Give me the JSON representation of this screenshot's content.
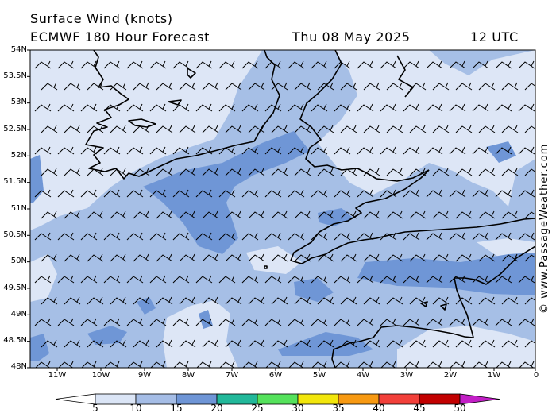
{
  "title": {
    "line1": "Surface Wind (knots)",
    "line2": "ECMWF 180 Hour Forecast",
    "date": "Thu 08 May 2025",
    "time": "12 UTC"
  },
  "watermark": "© www.PassageWeather.com",
  "axes": {
    "lat_labels": [
      "54N",
      "53.5N",
      "53N",
      "52.5N",
      "52N",
      "51.5N",
      "51N",
      "50.5N",
      "50N",
      "49.5N",
      "49N",
      "48.5N",
      "48N"
    ],
    "lon_labels": [
      "11W",
      "10W",
      "9W",
      "8W",
      "7W",
      "6W",
      "5W",
      "4W",
      "3W",
      "2W",
      "1W",
      "0"
    ]
  },
  "colorbar": {
    "labels": [
      "5",
      "10",
      "15",
      "20",
      "25",
      "30",
      "35",
      "40",
      "45",
      "50"
    ],
    "colors": [
      "#ffffff",
      "#dbe5f6",
      "#a5bde6",
      "#6e95d6",
      "#22b89a",
      "#55e25c",
      "#f2e60c",
      "#f79912",
      "#f2403a",
      "#c20000",
      "#c21fc6"
    ]
  },
  "map_colors": {
    "light": "#dde6f6",
    "mid": "#a6bfe6",
    "dark": "#6f96d6",
    "coast": "#000000",
    "barb": "#000000"
  }
}
